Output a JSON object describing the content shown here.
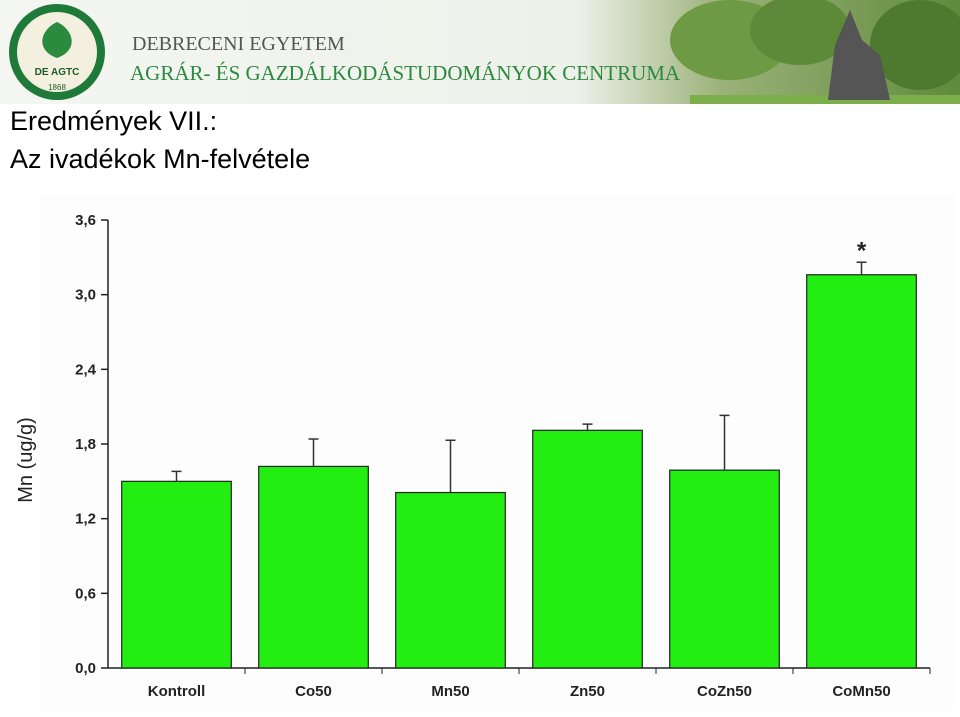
{
  "header": {
    "institution": "DEBRECENI EGYETEM",
    "center": "AGRÁR- ÉS GAZDÁLKODÁSTUDOMÁNYOK CENTRUMA",
    "logo_text": "DE AGTC",
    "logo_year": "1868"
  },
  "slide": {
    "title_line1": "Eredmények VII.:",
    "title_line2": "Az ivadékok Mn-felvétele"
  },
  "chart_data": {
    "type": "bar",
    "y_label": "Mn (ug/g)",
    "categories": [
      "Kontroll",
      "Co50",
      "Mn50",
      "Zn50",
      "CoZn50",
      "CoMn50"
    ],
    "values": [
      1.5,
      1.62,
      1.41,
      1.91,
      1.59,
      3.16
    ],
    "errors": [
      0.08,
      0.22,
      0.42,
      0.05,
      0.44,
      0.1
    ],
    "color": "#22ee11",
    "annotations": [
      {
        "category": "CoMn50",
        "text": "*"
      }
    ],
    "ylim": [
      0,
      3.6
    ],
    "yticks": [
      {
        "value": 0,
        "label": "0,0"
      },
      {
        "value": 0.6,
        "label": "0,6"
      },
      {
        "value": 1.2,
        "label": "1,2"
      },
      {
        "value": 1.8,
        "label": "1,8"
      },
      {
        "value": 2.4,
        "label": "2,4"
      },
      {
        "value": 3.0,
        "label": "3,0"
      },
      {
        "value": 3.6,
        "label": "3,6"
      }
    ],
    "grid": false
  }
}
